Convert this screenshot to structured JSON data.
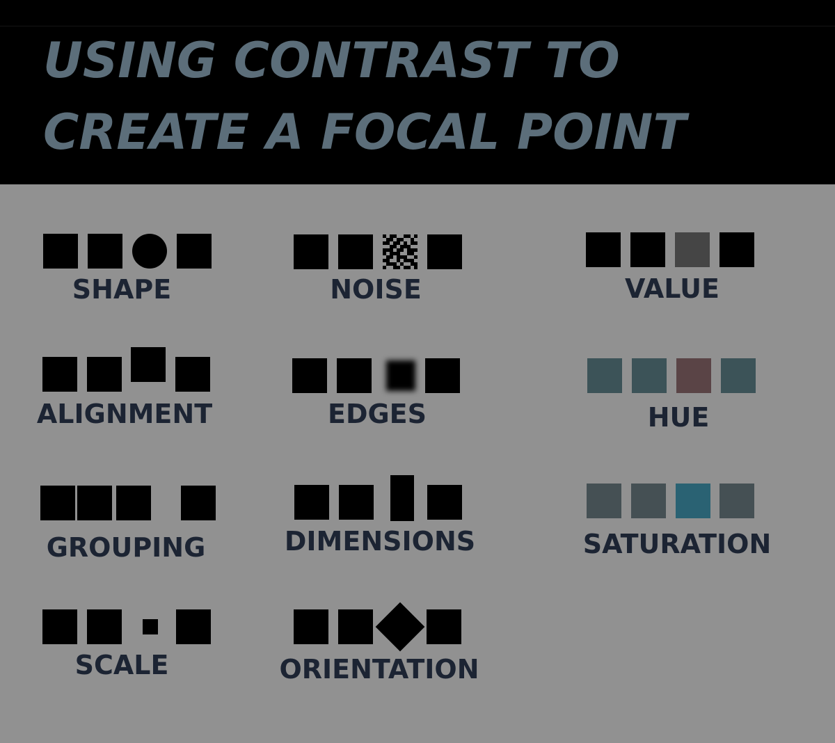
{
  "header": {
    "title_line1": "USING CONTRAST TO",
    "title_line2": "CREATE A FOCAL POINT"
  },
  "colors": {
    "title": "#5c6e7a",
    "label": "#1c2433",
    "background": "#919191",
    "hue_base": "#3c5358",
    "hue_accent": "#5a4446",
    "saturation_base": "#455054",
    "saturation_accent": "#2a6273",
    "value_accent": "#454545"
  },
  "items": {
    "shape": "SHAPE",
    "noise": "NOISE",
    "value": "VALUE",
    "alignment": "ALIGNMENT",
    "edges": "EDGES",
    "hue": "HUE",
    "grouping": "GROUPING",
    "dimensions": "DIMENSIONS",
    "saturation": "SATURATION",
    "scale": "SCALE",
    "orientation": "ORIENTATION"
  }
}
